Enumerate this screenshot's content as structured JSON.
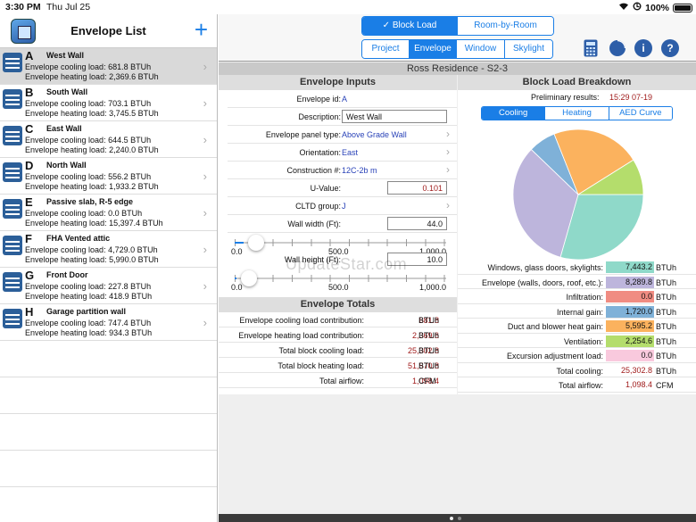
{
  "status": {
    "time": "3:30 PM",
    "date": "Thu Jul 25",
    "battery": "100%"
  },
  "left": {
    "title": "Envelope List",
    "add_label": "+",
    "items": [
      {
        "letter": "A",
        "name": "West Wall",
        "cooling": "Envelope cooling load: 681.8 BTUh",
        "heating": "Envelope heating load: 2,369.6 BTUh"
      },
      {
        "letter": "B",
        "name": "South Wall",
        "cooling": "Envelope cooling load: 703.1 BTUh",
        "heating": "Envelope heating load: 3,745.5 BTUh"
      },
      {
        "letter": "C",
        "name": "East Wall",
        "cooling": "Envelope cooling load: 644.5 BTUh",
        "heating": "Envelope heating load: 2,240.0 BTUh"
      },
      {
        "letter": "D",
        "name": "North Wall",
        "cooling": "Envelope cooling load: 556.2 BTUh",
        "heating": "Envelope heating load: 1,933.2 BTUh"
      },
      {
        "letter": "E",
        "name": "Passive slab, R-5 edge",
        "cooling": "Envelope cooling load: 0.0 BTUh",
        "heating": "Envelope heating load: 15,397.4 BTUh"
      },
      {
        "letter": "F",
        "name": "FHA Vented attic",
        "cooling": "Envelope cooling load: 4,729.0 BTUh",
        "heating": "Envelope heating load: 5,990.0 BTUh"
      },
      {
        "letter": "G",
        "name": "Front Door",
        "cooling": "Envelope cooling load: 227.8 BTUh",
        "heating": "Envelope heating load: 418.9 BTUh"
      },
      {
        "letter": "H",
        "name": "Garage partition wall",
        "cooling": "Envelope cooling load: 747.4 BTUh",
        "heating": "Envelope heating load: 934.3 BTUh"
      }
    ]
  },
  "toolbar": {
    "mode_tabs": [
      "✓ Block Load",
      "Room-by-Room"
    ],
    "section_tabs": [
      "Project",
      "Envelope",
      "Window",
      "Skylight"
    ],
    "info_label": "i",
    "help_label": "?"
  },
  "doc_title": "Ross Residence - S2-3",
  "inputs": {
    "heading": "Envelope Inputs",
    "envelope_id_label": "Envelope id:",
    "envelope_id": "A",
    "description_label": "Description:",
    "description": "West Wall",
    "panel_type_label": "Envelope panel type:",
    "panel_type": "Above Grade Wall",
    "orientation_label": "Orientation:",
    "orientation": "East",
    "construction_label": "Construction #:",
    "construction": "12C-2b m",
    "uvalue_label": "U-Value:",
    "uvalue": "0.101",
    "cltd_label": "CLTD group:",
    "cltd": "J",
    "width_label": "Wall width (Ft):",
    "width": "44.0",
    "height_label": "Wall height (Ft):",
    "height": "10.0",
    "slider_min": "0.0",
    "slider_mid": "500.0",
    "slider_max": "1,000.0",
    "width_fraction": 0.044,
    "height_fraction": 0.01
  },
  "totals": {
    "heading": "Envelope Totals",
    "rows": [
      {
        "label": "Envelope cooling load contribution:",
        "value": "681.8",
        "unit": "BTUh"
      },
      {
        "label": "Envelope heating load contribution:",
        "value": "2,369.6",
        "unit": "BTUh"
      },
      {
        "label": "Total block cooling load:",
        "value": "25,302.8",
        "unit": "BTUh"
      },
      {
        "label": "Total block heating load:",
        "value": "51,570.8",
        "unit": "BTUh"
      },
      {
        "label": "Total airflow:",
        "value": "1,098.4",
        "unit": "CFM"
      }
    ]
  },
  "breakdown": {
    "heading": "Block Load Breakdown",
    "prelim_label": "Preliminary results:",
    "prelim_value": "15:29 07-19",
    "tabs": [
      "Cooling",
      "Heating",
      "AED Curve"
    ],
    "rows": [
      {
        "label": "Windows, glass doors, skylights:",
        "value": "7,443.2",
        "unit": "BTUh",
        "color": "#8fd9c9"
      },
      {
        "label": "Envelope (walls, doors, roof, etc.):",
        "value": "8,289.8",
        "unit": "BTUh",
        "color": "#bdb5dc"
      },
      {
        "label": "Infiltration:",
        "value": "0.0",
        "unit": "BTUh",
        "color": "#f08c82"
      },
      {
        "label": "Internal gain:",
        "value": "1,720.0",
        "unit": "BTUh",
        "color": "#7fb1d8"
      },
      {
        "label": "Duct and blower heat gain:",
        "value": "5,595.2",
        "unit": "BTUh",
        "color": "#fbb25e"
      },
      {
        "label": "Ventilation:",
        "value": "2,254.6",
        "unit": "BTUh",
        "color": "#b4dd6c"
      },
      {
        "label": "Excursion adjustment load:",
        "value": "0.0",
        "unit": "BTUh",
        "color": "#f9c9dd"
      },
      {
        "label": "Total cooling:",
        "value": "25,302.8",
        "unit": "BTUh",
        "color": ""
      },
      {
        "label": "Total airflow:",
        "value": "1,098.4",
        "unit": "CFM",
        "color": ""
      }
    ]
  },
  "chart_data": {
    "type": "pie",
    "title": "",
    "labels": [
      "Windows, glass doors, skylights",
      "Envelope (walls, doors, roof, etc.)",
      "Infiltration",
      "Internal gain",
      "Duct and blower heat gain",
      "Ventilation",
      "Excursion adjustment load"
    ],
    "values": [
      7443.2,
      8289.8,
      0.0,
      1720.0,
      5595.2,
      2254.6,
      0.0
    ],
    "colors": [
      "#8fd9c9",
      "#bdb5dc",
      "#f08c82",
      "#7fb1d8",
      "#fbb25e",
      "#b4dd6c",
      "#f9c9dd"
    ]
  },
  "watermark": "UpdateStar.com"
}
